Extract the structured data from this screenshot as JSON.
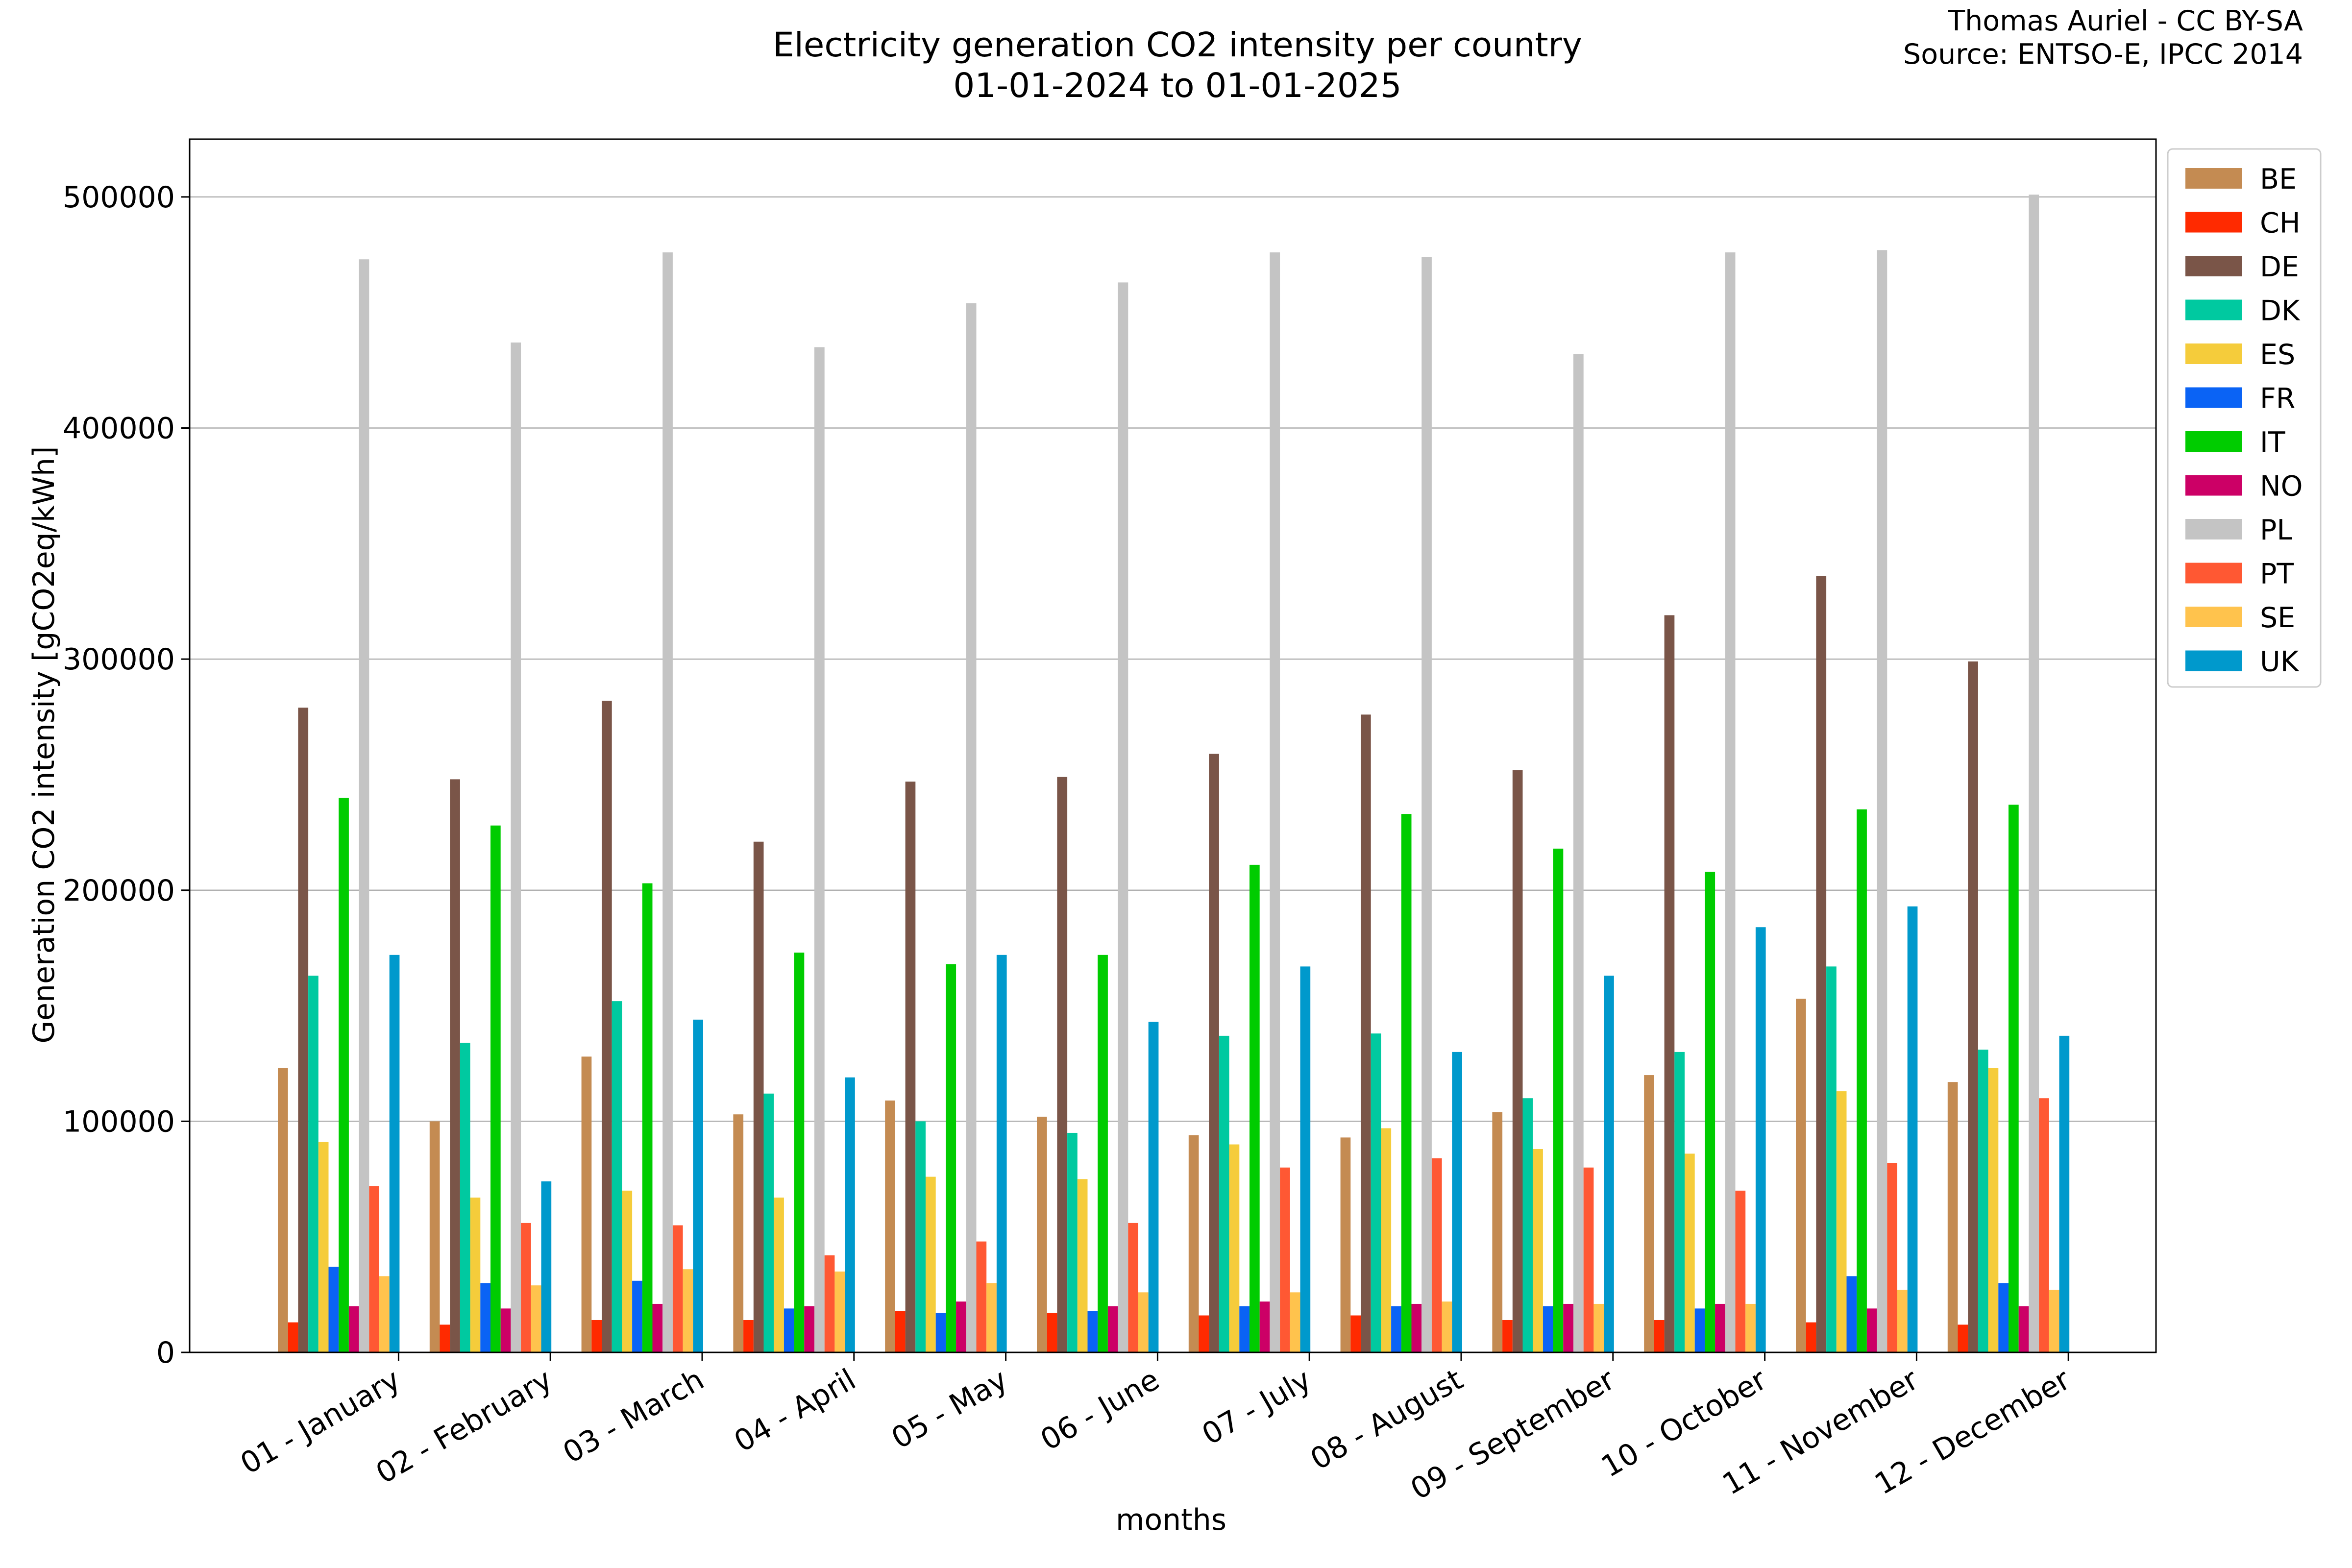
{
  "chart_data": {
    "type": "bar",
    "title": "Electricity generation CO2 intensity per country",
    "subtitle": "01-01-2024 to 01-01-2025",
    "credit_line1": "Thomas Auriel - CC BY-SA",
    "credit_line2": "Source: ENTSO-E, IPCC 2014",
    "xlabel": "months",
    "ylabel": "Generation CO2 intensity [gCO2eq/kWh]",
    "ylim": [
      0,
      525000
    ],
    "yticks": [
      0,
      100000,
      200000,
      300000,
      400000,
      500000
    ],
    "ytick_labels": [
      "0",
      "100000",
      "200000",
      "300000",
      "400000",
      "500000"
    ],
    "grid": "horizontal",
    "legend_position": "upper-right-outside",
    "categories": [
      "01 - January",
      "02 - February",
      "03 - March",
      "04 - April",
      "05 - May",
      "06 - June",
      "07 - July",
      "08 - August",
      "09 - September",
      "10 - October",
      "11 - November",
      "12 - December"
    ],
    "series": [
      {
        "name": "BE",
        "color": "#c48b52",
        "values": [
          123000,
          100000,
          128000,
          103000,
          109000,
          102000,
          94000,
          93000,
          104000,
          120000,
          153000,
          117000
        ]
      },
      {
        "name": "CH",
        "color": "#ff2a00",
        "values": [
          13000,
          12000,
          14000,
          14000,
          18000,
          17000,
          16000,
          16000,
          14000,
          14000,
          13000,
          12000
        ]
      },
      {
        "name": "DE",
        "color": "#7a5548",
        "values": [
          279000,
          248000,
          282000,
          221000,
          247000,
          249000,
          259000,
          276000,
          252000,
          319000,
          336000,
          299000
        ]
      },
      {
        "name": "DK",
        "color": "#00c9a0",
        "values": [
          163000,
          134000,
          152000,
          112000,
          100000,
          95000,
          137000,
          138000,
          110000,
          130000,
          167000,
          131000
        ]
      },
      {
        "name": "ES",
        "color": "#f5cc3b",
        "values": [
          91000,
          67000,
          70000,
          67000,
          76000,
          75000,
          90000,
          97000,
          88000,
          86000,
          113000,
          123000
        ]
      },
      {
        "name": "FR",
        "color": "#0a63f5",
        "values": [
          37000,
          30000,
          31000,
          19000,
          17000,
          18000,
          20000,
          20000,
          20000,
          19000,
          33000,
          30000
        ]
      },
      {
        "name": "IT",
        "color": "#00cc00",
        "values": [
          240000,
          228000,
          203000,
          173000,
          168000,
          172000,
          211000,
          233000,
          218000,
          208000,
          235000,
          237000
        ]
      },
      {
        "name": "NO",
        "color": "#cc0066",
        "values": [
          20000,
          19000,
          21000,
          20000,
          22000,
          20000,
          22000,
          21000,
          21000,
          21000,
          19000,
          20000
        ]
      },
      {
        "name": "PL",
        "color": "#c4c4c4",
        "values": [
          473000,
          437000,
          476000,
          435000,
          454000,
          463000,
          476000,
          474000,
          432000,
          476000,
          477000,
          501000
        ]
      },
      {
        "name": "PT",
        "color": "#ff5833",
        "values": [
          72000,
          56000,
          55000,
          42000,
          48000,
          56000,
          80000,
          84000,
          80000,
          70000,
          82000,
          110000
        ]
      },
      {
        "name": "SE",
        "color": "#ffc34d",
        "values": [
          33000,
          29000,
          36000,
          35000,
          30000,
          26000,
          26000,
          22000,
          21000,
          21000,
          27000,
          27000
        ]
      },
      {
        "name": "UK",
        "color": "#0099cc",
        "values": [
          172000,
          74000,
          144000,
          119000,
          172000,
          143000,
          167000,
          130000,
          163000,
          184000,
          193000,
          137000
        ]
      }
    ]
  }
}
